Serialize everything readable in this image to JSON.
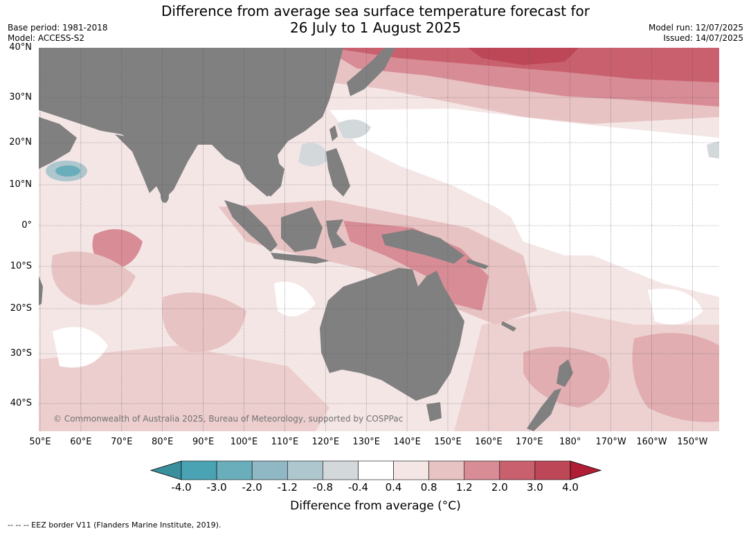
{
  "title_line1": "Difference from average sea surface temperature forecast for",
  "title_line2": "26 July to 1 August 2025",
  "base_period": "Base period: 1981-2018",
  "model": "Model: ACCESS-S2",
  "model_run": "Model run: 12/07/2025",
  "issued": "Issued: 14/07/2025",
  "latitudes": [
    "40°N",
    "30°N",
    "20°N",
    "10°N",
    "0°",
    "10°S",
    "20°S",
    "30°S",
    "40°S"
  ],
  "longitudes": [
    "50°E",
    "60°E",
    "70°E",
    "80°E",
    "90°E",
    "100°E",
    "110°E",
    "120°E",
    "130°E",
    "140°E",
    "150°E",
    "160°E",
    "170°E",
    "180°",
    "170°W",
    "160°W",
    "150°W"
  ],
  "copyright": "© Commonwealth of Australia 2025, Bureau of Meteorology, supported by COSPPac",
  "colorbar": {
    "ticks": [
      "-4.0",
      "-3.0",
      "-2.0",
      "-1.2",
      "-0.8",
      "-0.4",
      "0.4",
      "0.8",
      "1.2",
      "2.0",
      "3.0",
      "4.0"
    ],
    "colors": [
      "#3a8f9c",
      "#4aa3b3",
      "#6aaebb",
      "#8fb8c4",
      "#aec6cd",
      "#d3d8da",
      "#ffffff",
      "#f5e6e6",
      "#e8c3c3",
      "#d88c96",
      "#c9606e",
      "#bd4657",
      "#b01e36"
    ],
    "title": "Difference from average (°C)"
  },
  "colors": {
    "land": "#808080",
    "gridline": "#555555"
  },
  "footnote": "--  --  -- EEZ border V11 (Flanders Marine Institute, 2019)."
}
